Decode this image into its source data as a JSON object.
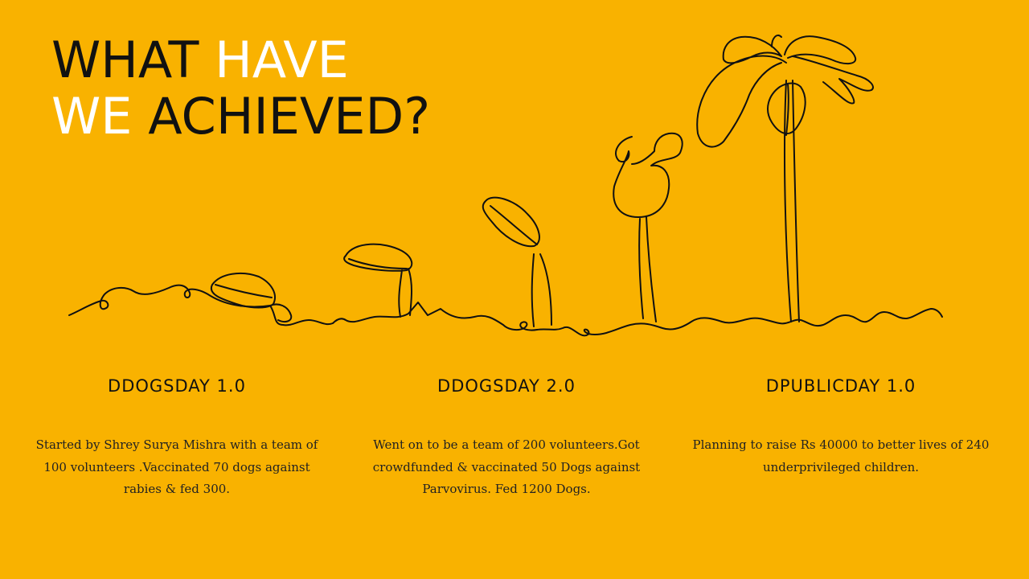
{
  "title": {
    "line1_dark": "WHAT",
    "line1_light": "HAVE",
    "line2_light": "WE",
    "line2_dark": "ACHIEVED?"
  },
  "colors": {
    "background": "#F9B200",
    "highlight": "#FFFFFF",
    "text": "#111111"
  },
  "illustration": {
    "icon": "plant-growth-line-art"
  },
  "milestones": [
    {
      "heading": "DDOGSDAY 1.0",
      "text": "Started by Shrey Surya Mishra  with a team of 100 volunteers .Vaccinated 70 dogs against rabies & fed 300."
    },
    {
      "heading": "DDOGSDAY 2.0",
      "text": "Went on to be a team of 200 volunteers.Got crowdfunded & vaccinated 50 Dogs against Parvovirus. Fed 1200 Dogs."
    },
    {
      "heading": "DPUBLICDAY 1.0",
      "text": "Planning to raise Rs 40000 to better lives of 240 underprivileged children."
    }
  ]
}
